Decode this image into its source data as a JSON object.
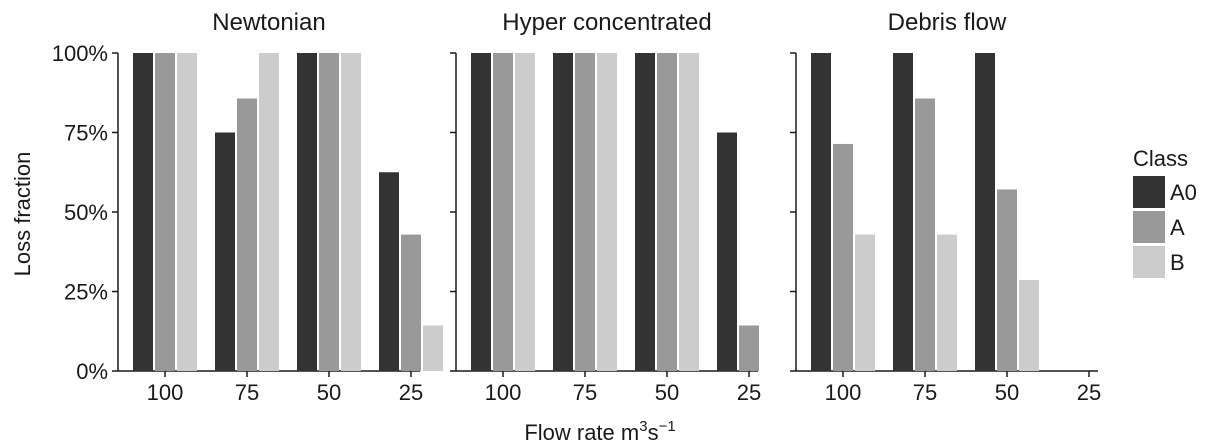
{
  "chart_data": {
    "type": "bar",
    "ylabel": "Loss fraction",
    "xlabel": {
      "text": "Flow rate m",
      "sup1": "3",
      "mid": "s",
      "sup2": "−1"
    },
    "ylim": [
      0,
      1
    ],
    "yticks": [
      "0%",
      "25%",
      "50%",
      "75%",
      "100%"
    ],
    "ytick_values": [
      0,
      0.25,
      0.5,
      0.75,
      1.0
    ],
    "categories": [
      "100",
      "75",
      "50",
      "25"
    ],
    "legend": {
      "title": "Class",
      "placement": "right"
    },
    "series_colors": {
      "A0": "#333333",
      "A": "#999999",
      "B": "#cccccc"
    },
    "panels": [
      {
        "title": "Newtonian",
        "series": [
          {
            "name": "A0",
            "values": [
              1.0,
              0.75,
              1.0,
              0.625
            ]
          },
          {
            "name": "A",
            "values": [
              1.0,
              0.857,
              1.0,
              0.429
            ]
          },
          {
            "name": "B",
            "values": [
              1.0,
              1.0,
              1.0,
              0.143
            ]
          }
        ]
      },
      {
        "title": "Hyper concentrated",
        "series": [
          {
            "name": "A0",
            "values": [
              1.0,
              1.0,
              1.0,
              0.75
            ]
          },
          {
            "name": "A",
            "values": [
              1.0,
              1.0,
              1.0,
              0.143
            ]
          },
          {
            "name": "B",
            "values": [
              1.0,
              1.0,
              1.0,
              0.0
            ]
          }
        ]
      },
      {
        "title": "Debris flow",
        "series": [
          {
            "name": "A0",
            "values": [
              1.0,
              1.0,
              1.0,
              0.0
            ]
          },
          {
            "name": "A",
            "values": [
              0.714,
              0.857,
              0.571,
              0.0
            ]
          },
          {
            "name": "B",
            "values": [
              0.429,
              0.429,
              0.286,
              0.0
            ]
          }
        ]
      }
    ]
  }
}
